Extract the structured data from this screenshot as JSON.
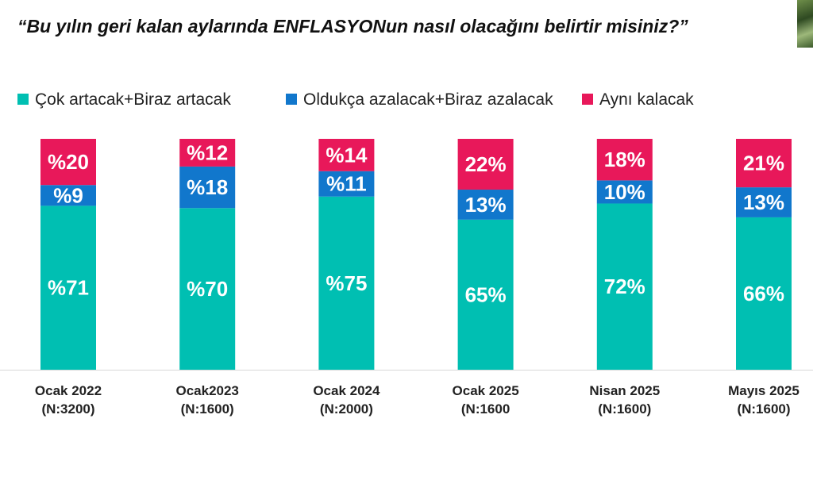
{
  "title": "“Bu yılın geri kalan aylarında ENFLASYONun nasıl olacağını belirtir misiniz?”",
  "colors": {
    "increase": "#00BFB2",
    "decrease": "#1177CC",
    "same": "#E8185A",
    "axis": "#d9d9d9"
  },
  "chart_data": {
    "type": "bar",
    "stacked": true,
    "categories": [
      [
        "Ocak 2022",
        "(N:3200)"
      ],
      [
        "Ocak2023",
        "(N:1600)"
      ],
      [
        "Ocak 2024",
        "(N:2000)"
      ],
      [
        "Ocak 2025",
        "(N:1600"
      ],
      [
        "Nisan 2025",
        "(N:1600)"
      ],
      [
        "Mayıs 2025",
        "(N:1600)"
      ]
    ],
    "series": [
      {
        "name": "Çok artacak+Biraz artacak",
        "color_key": "increase",
        "values": [
          71,
          70,
          75,
          65,
          72,
          66
        ],
        "labels": [
          "%71",
          "%70",
          "%75",
          "65%",
          "72%",
          "66%"
        ]
      },
      {
        "name": "Oldukça azalacak+Biraz azalacak",
        "color_key": "decrease",
        "values": [
          9,
          18,
          11,
          13,
          10,
          13
        ],
        "labels": [
          "%9",
          "%18",
          "%11",
          "13%",
          "10%",
          "13%"
        ]
      },
      {
        "name": "Aynı kalacak",
        "color_key": "same",
        "values": [
          20,
          12,
          14,
          22,
          18,
          21
        ],
        "labels": [
          "%20",
          "%12",
          "%14",
          "22%",
          "18%",
          "21%"
        ]
      }
    ],
    "ylim": [
      0,
      100
    ],
    "legend_position": "top",
    "grid": false
  }
}
